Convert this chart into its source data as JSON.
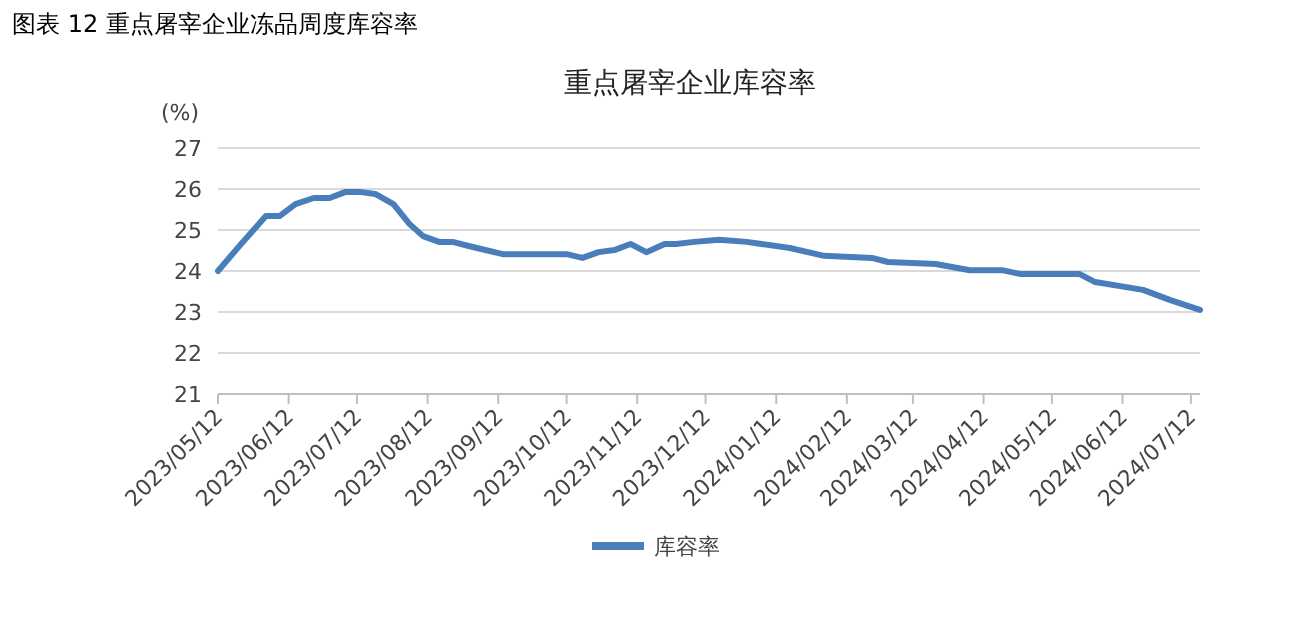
{
  "chart_data": {
    "type": "line",
    "title": "图表 12  重点屠宰企业冻品周度库容率",
    "subtitle": "重点屠宰企业库容率",
    "ylabel": "(%)",
    "x": [
      "2023-05-12",
      "2023-05-22",
      "2023-06-02",
      "2023-06-08",
      "2023-06-15",
      "2023-06-23",
      "2023-06-30",
      "2023-07-07",
      "2023-07-13",
      "2023-07-20",
      "2023-07-28",
      "2023-08-04",
      "2023-08-10",
      "2023-08-17",
      "2023-08-23",
      "2023-08-30",
      "2023-09-14",
      "2023-09-28",
      "2023-10-12",
      "2023-10-19",
      "2023-10-26",
      "2023-11-02",
      "2023-11-09",
      "2023-11-16",
      "2023-11-24",
      "2023-11-29",
      "2023-12-07",
      "2023-12-18",
      "2023-12-30",
      "2024-01-18",
      "2024-02-02",
      "2024-02-23",
      "2024-03-01",
      "2024-03-22",
      "2024-04-06",
      "2024-04-20",
      "2024-04-28",
      "2024-05-24",
      "2024-05-31",
      "2024-06-21",
      "2024-07-03",
      "2024-07-16"
    ],
    "series": [
      {
        "name": "库容率",
        "color": "#4a7ebb",
        "values": [
          24.0,
          24.65,
          25.34,
          25.34,
          25.63,
          25.78,
          25.78,
          25.93,
          25.93,
          25.88,
          25.63,
          25.15,
          24.85,
          24.71,
          24.71,
          24.61,
          24.41,
          24.41,
          24.41,
          24.32,
          24.46,
          24.51,
          24.66,
          24.46,
          24.66,
          24.66,
          24.71,
          24.76,
          24.71,
          24.56,
          24.37,
          24.32,
          24.22,
          24.17,
          24.02,
          24.02,
          23.93,
          23.93,
          23.73,
          23.54,
          23.29,
          23.05
        ]
      }
    ],
    "xlim": [
      "2023-05-12",
      "2024-07-16"
    ],
    "xticks": [
      {
        "value": "2023-05-12",
        "label": "2023/05/12"
      },
      {
        "value": "2023-06-12",
        "label": "2023/06/12"
      },
      {
        "value": "2023-07-12",
        "label": "2023/07/12"
      },
      {
        "value": "2023-08-12",
        "label": "2023/08/12"
      },
      {
        "value": "2023-09-12",
        "label": "2023/09/12"
      },
      {
        "value": "2023-10-12",
        "label": "2023/10/12"
      },
      {
        "value": "2023-11-12",
        "label": "2023/11/12"
      },
      {
        "value": "2023-12-12",
        "label": "2023/12/12"
      },
      {
        "value": "2024-01-12",
        "label": "2024/01/12"
      },
      {
        "value": "2024-02-12",
        "label": "2024/02/12"
      },
      {
        "value": "2024-03-12",
        "label": "2024/03/12"
      },
      {
        "value": "2024-04-12",
        "label": "2024/04/12"
      },
      {
        "value": "2024-05-12",
        "label": "2024/05/12"
      },
      {
        "value": "2024-06-12",
        "label": "2024/06/12"
      },
      {
        "value": "2024-07-12",
        "label": "2024/07/12"
      }
    ],
    "ylim": [
      21,
      27
    ],
    "yticks": [
      21,
      22,
      23,
      24,
      25,
      26,
      27
    ],
    "grid": "y",
    "legend": "bottom",
    "marker": "none",
    "line_style": "solid"
  }
}
